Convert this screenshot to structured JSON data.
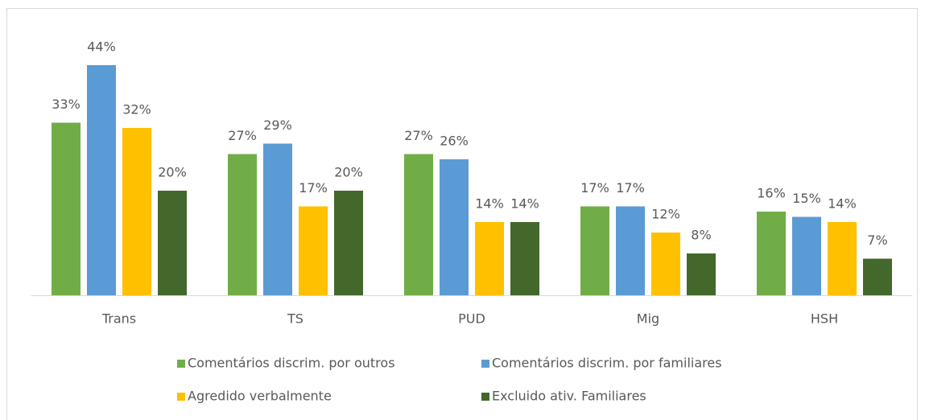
{
  "chart_data": {
    "type": "bar",
    "categories": [
      "Trans",
      "TS",
      "PUD",
      "Mig",
      "HSH"
    ],
    "series": [
      {
        "name": "Comentários discrim. por outros",
        "color": "#70ad47",
        "values": [
          33,
          27,
          27,
          17,
          16
        ],
        "value_labels": [
          "33%",
          "27%",
          "27%",
          "17%",
          "16%"
        ]
      },
      {
        "name": "Comentários discrim. por familiares",
        "color": "#5b9bd5",
        "values": [
          44,
          29,
          26,
          17,
          15
        ],
        "value_labels": [
          "44%",
          "29%",
          "26%",
          "17%",
          "15%"
        ]
      },
      {
        "name": "Agredido verbalmente",
        "color": "#ffc000",
        "values": [
          32,
          17,
          14,
          12,
          14
        ],
        "value_labels": [
          "32%",
          "17%",
          "14%",
          "12%",
          "14%"
        ]
      },
      {
        "name": "Excluido ativ. Familiares",
        "color": "#43682b",
        "values": [
          20,
          20,
          14,
          8,
          7
        ],
        "value_labels": [
          "20%",
          "20%",
          "14%",
          "8%",
          "7%"
        ]
      }
    ],
    "legend": "bottom"
  }
}
